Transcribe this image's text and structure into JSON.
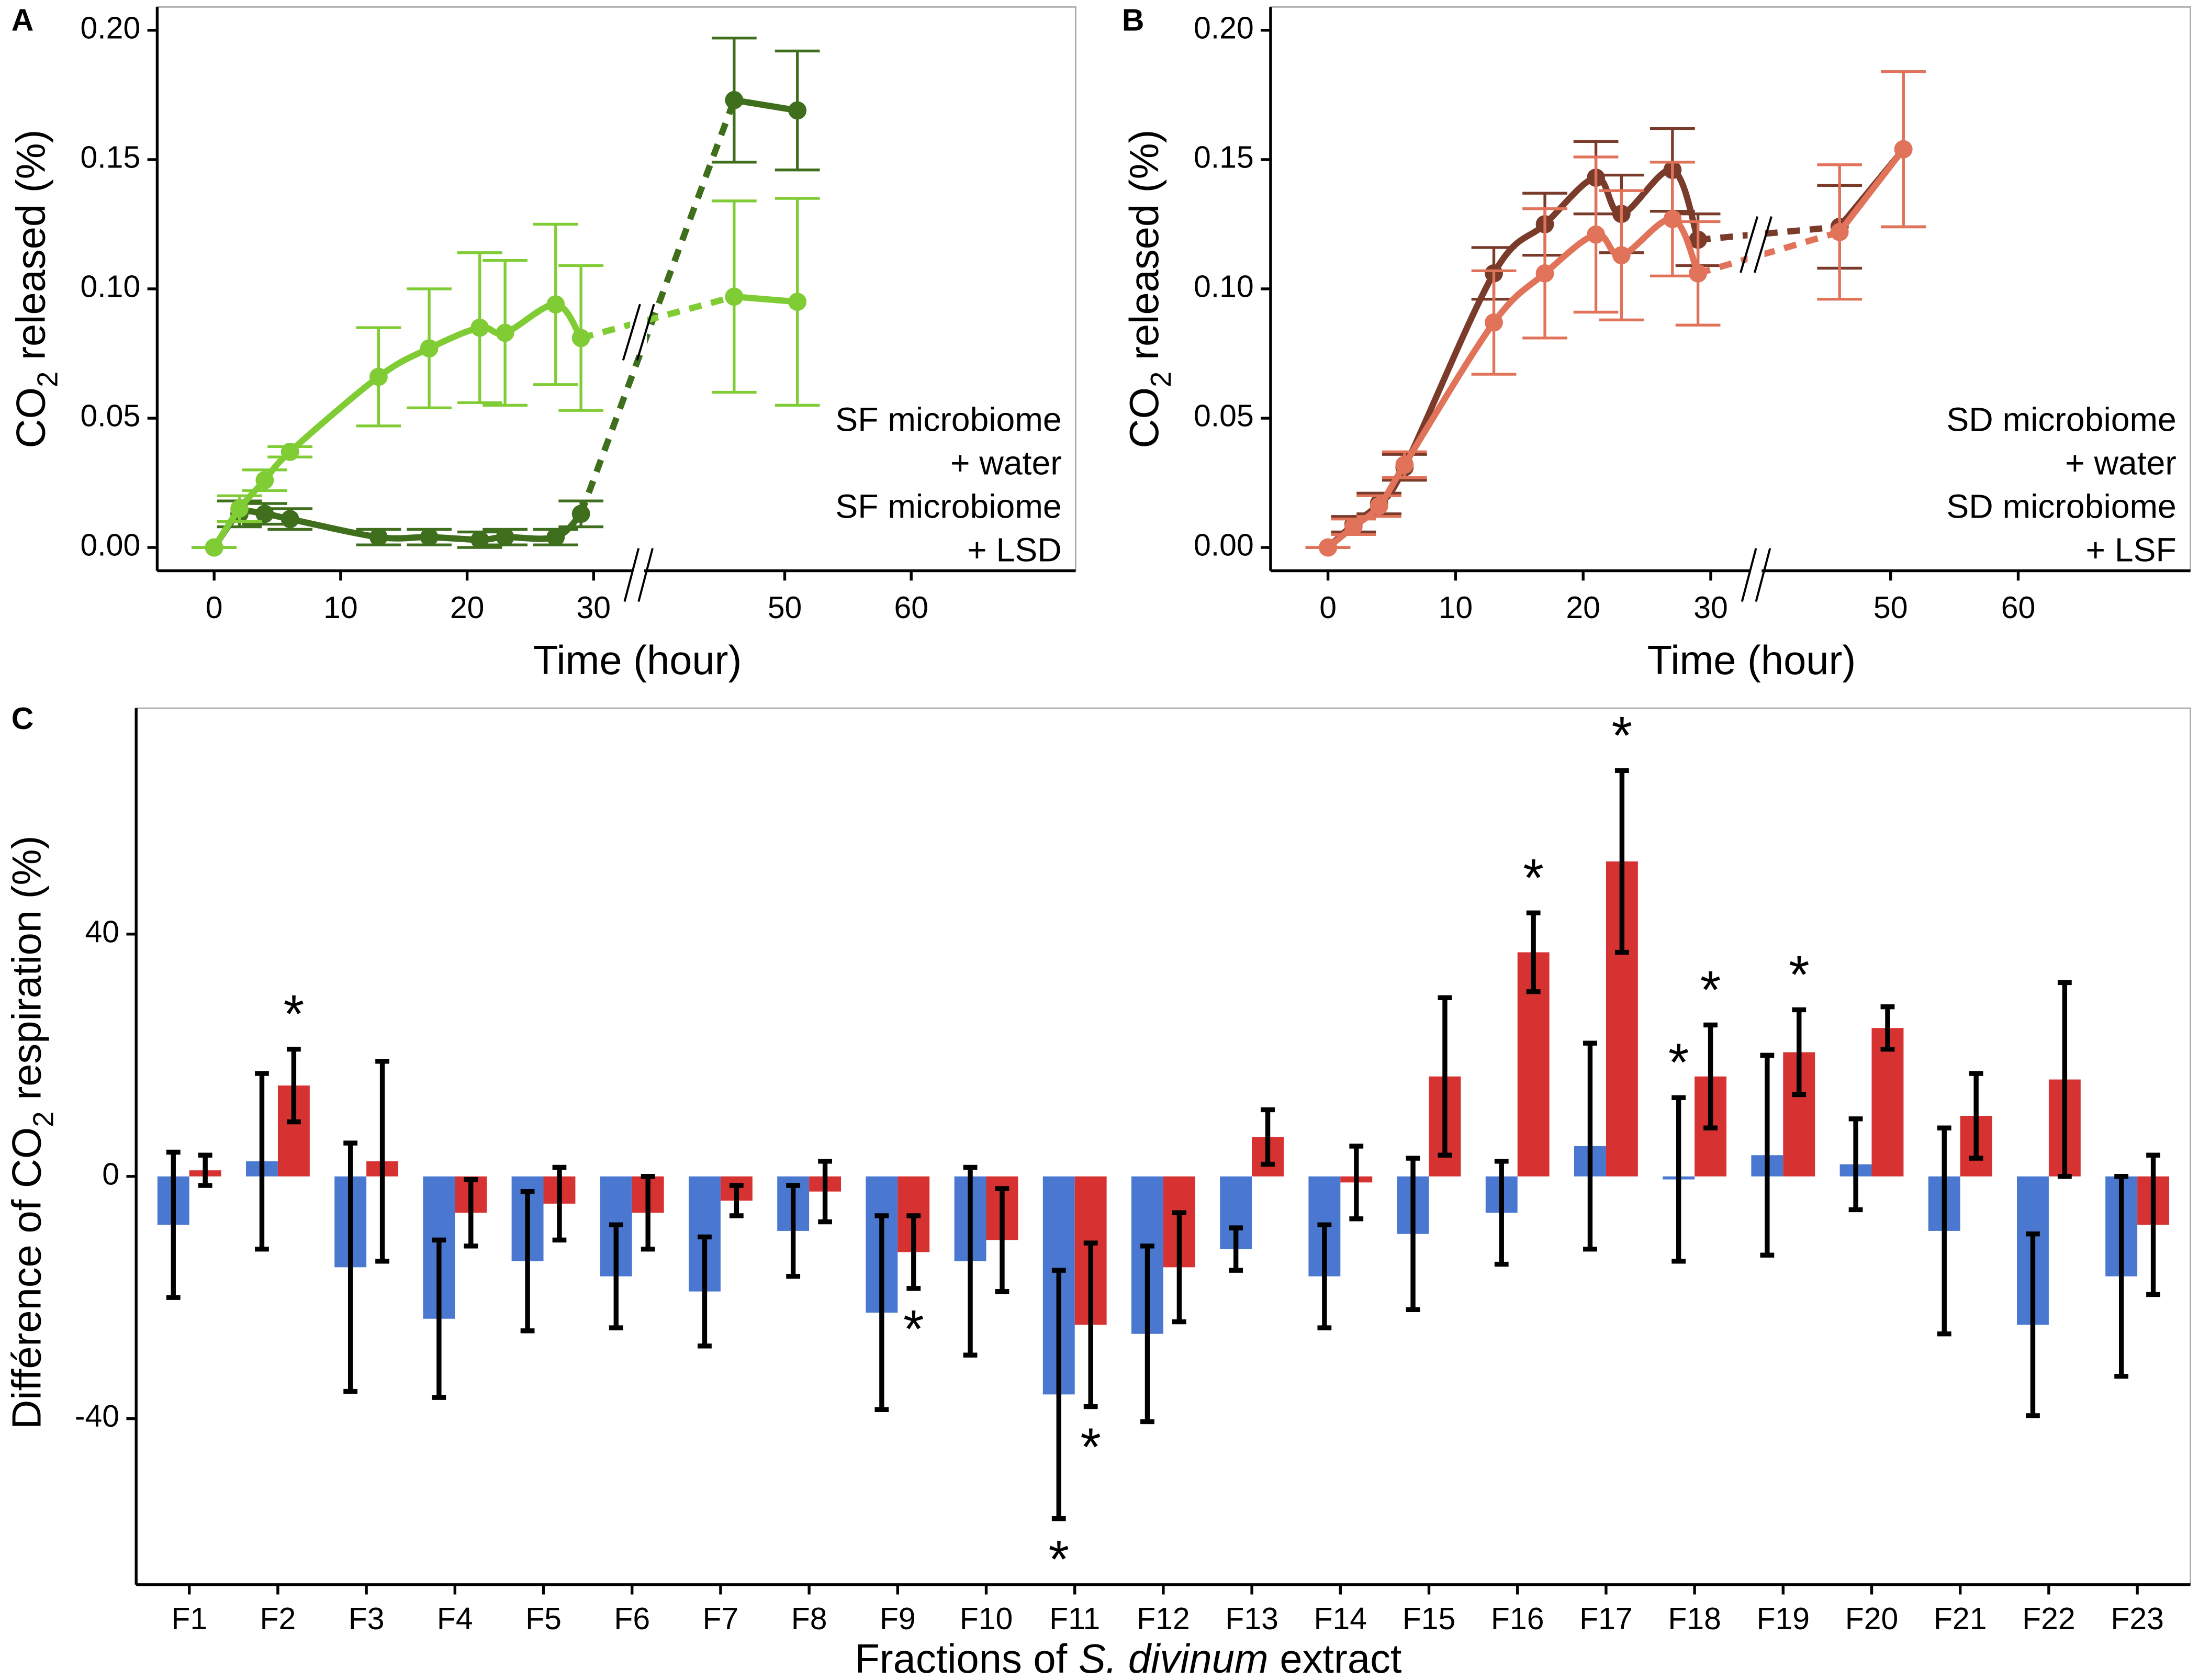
{
  "chart_data": [
    {
      "type": "line",
      "panel": "A",
      "xlabel": "Time (hour)",
      "ylabel": [
        {
          "text": "CO"
        },
        {
          "text": "2",
          "style": "sub"
        },
        {
          "text": "released (%)"
        }
      ],
      "x": [
        0,
        2,
        4,
        6,
        13,
        17,
        21,
        23,
        27,
        29,
        46,
        51
      ],
      "xlim": [
        -4.5,
        73
      ],
      "xbreak": [
        33,
        39
      ],
      "xticks": [
        0,
        10,
        20,
        30,
        50,
        60
      ],
      "ylim": [
        -0.009,
        0.209
      ],
      "yticks": [
        {
          "value": 0,
          "label": "0.00"
        },
        {
          "value": 0.05,
          "label": "0.05"
        },
        {
          "value": 0.1,
          "label": "0.10"
        },
        {
          "value": 0.15,
          "label": "0.15"
        },
        {
          "value": 0.2,
          "label": "0.20"
        }
      ],
      "series": [
        {
          "name": [
            "SF microbiome",
            "+ water"
          ],
          "color": "#80cc34",
          "values": [
            0,
            0.015,
            0.026,
            0.037,
            0.066,
            0.077,
            0.085,
            0.083,
            0.094,
            0.081,
            0.097,
            0.095
          ],
          "errors": [
            0,
            0.005,
            0.004,
            0.002,
            0.019,
            0.023,
            0.029,
            0.028,
            0.031,
            0.028,
            0.037,
            0.04
          ]
        },
        {
          "name": [
            "SF microbiome",
            "+ LSD"
          ],
          "color": "#3f6e1c",
          "values": [
            0,
            0.013,
            0.013,
            0.011,
            0.004,
            0.004,
            0.003,
            0.004,
            0.004,
            0.013,
            0.173,
            0.169
          ],
          "errors": [
            0,
            0.005,
            0.004,
            0.004,
            0.003,
            0.003,
            0.003,
            0.003,
            0.003,
            0.005,
            0.024,
            0.023
          ]
        }
      ]
    },
    {
      "type": "line",
      "panel": "B",
      "xlabel": "Time (hour)",
      "ylabel": [
        {
          "text": "CO"
        },
        {
          "text": "2",
          "style": "sub"
        },
        {
          "text": "released (%)"
        }
      ],
      "x": [
        0,
        2,
        4,
        6,
        13,
        17,
        21,
        23,
        27,
        29,
        46,
        51
      ],
      "xlim": [
        -4.5,
        73.5
      ],
      "xbreak": [
        33,
        40
      ],
      "xticks": [
        0,
        10,
        20,
        30,
        50,
        60
      ],
      "ylim": [
        -0.009,
        0.209
      ],
      "yticks": [
        {
          "value": 0,
          "label": "0.00"
        },
        {
          "value": 0.05,
          "label": "0.05"
        },
        {
          "value": 0.1,
          "label": "0.10"
        },
        {
          "value": 0.15,
          "label": "0.15"
        },
        {
          "value": 0.2,
          "label": "0.20"
        }
      ],
      "series": [
        {
          "name": [
            "SD microbiome",
            "+ water"
          ],
          "color": "#e0735a",
          "values": [
            0,
            0.008,
            0.016,
            0.032,
            0.087,
            0.106,
            0.121,
            0.113,
            0.127,
            0.106,
            0.122,
            0.154
          ],
          "errors": [
            0,
            0.003,
            0.004,
            0.005,
            0.02,
            0.025,
            0.03,
            0.025,
            0.022,
            0.02,
            0.026,
            0.03
          ]
        },
        {
          "name": [
            "SD microbiome",
            "+ LSF"
          ],
          "color": "#7b3b2b",
          "values": [
            0,
            0.009,
            0.017,
            0.031,
            0.106,
            0.125,
            0.143,
            0.129,
            0.146,
            0.119,
            0.124,
            0.154
          ],
          "errors": [
            0,
            0.003,
            0.004,
            0.005,
            0.01,
            0.012,
            0.014,
            0.015,
            0.016,
            0.01,
            0.016,
            0.03
          ]
        }
      ]
    },
    {
      "type": "bar",
      "panel": "C",
      "xlabel": [
        {
          "text": "Fractions of"
        },
        {
          "text": "S. divinum",
          "style": "italic"
        },
        {
          "text": "extract"
        }
      ],
      "ylabel": [
        {
          "text": "Différence of CO"
        },
        {
          "text": "2",
          "style": "sub"
        },
        {
          "text": "respiration (%)"
        }
      ],
      "categories": [
        "F1",
        "F2",
        "F3",
        "F4",
        "F5",
        "F6",
        "F7",
        "F8",
        "F9",
        "F10",
        "F11",
        "F12",
        "F13",
        "F14",
        "F15",
        "F16",
        "F17",
        "F18",
        "F19",
        "F20",
        "F21",
        "F22",
        "F23"
      ],
      "ylim": [
        -67.4,
        77.3
      ],
      "yticks": [
        -40,
        0,
        40
      ],
      "series": [
        {
          "color": "#4a78d0",
          "values": [
            -8,
            2.5,
            -15,
            -23.5,
            -14,
            -16.5,
            -19,
            -9,
            -22.5,
            -14,
            -36,
            -26,
            -12,
            -16.5,
            -9.5,
            -6,
            5,
            -0.5,
            3.5,
            2,
            -9,
            -24.5,
            -16.5
          ],
          "errors": [
            12,
            14.5,
            20.5,
            13,
            11.5,
            8.5,
            9,
            7.5,
            16,
            15.5,
            20.5,
            14.5,
            3.5,
            8.5,
            12.5,
            8.5,
            17,
            13.5,
            16.5,
            7.5,
            17,
            15,
            16.5
          ]
        },
        {
          "color": "#d63232",
          "values": [
            1,
            15,
            2.5,
            -6,
            -4.5,
            -6,
            -4,
            -2.5,
            -12.5,
            -10.5,
            -24.5,
            -15,
            6.5,
            -1,
            16.5,
            37,
            52,
            16.5,
            20.5,
            24.5,
            10,
            16,
            -8
          ],
          "errors": [
            2.5,
            6,
            16.5,
            5.5,
            6,
            6,
            2.5,
            5,
            6,
            8.5,
            13.5,
            9,
            4.5,
            6,
            13,
            6.5,
            15,
            8.5,
            7,
            3.5,
            7,
            16,
            11.5
          ]
        }
      ],
      "annotations": [
        {
          "text": "*",
          "series": 1,
          "index": 1,
          "color": "#d63232"
        },
        {
          "text": "*",
          "series": 1,
          "index": 8,
          "color": "#d63232"
        },
        {
          "text": "*",
          "series": 0,
          "index": 10,
          "color": "#4a78d0"
        },
        {
          "text": "*",
          "series": 1,
          "index": 10,
          "color": "#d63232"
        },
        {
          "text": "*",
          "series": 1,
          "index": 15,
          "color": "#d63232"
        },
        {
          "text": "*",
          "series": 1,
          "index": 16,
          "color": "#d63232"
        },
        {
          "text": "*",
          "series": 0,
          "index": 17,
          "color": "#d63232"
        },
        {
          "text": "*",
          "series": 1,
          "index": 17,
          "color": "#d63232"
        },
        {
          "text": "*",
          "series": 1,
          "index": 18,
          "color": "#d63232"
        }
      ]
    }
  ]
}
